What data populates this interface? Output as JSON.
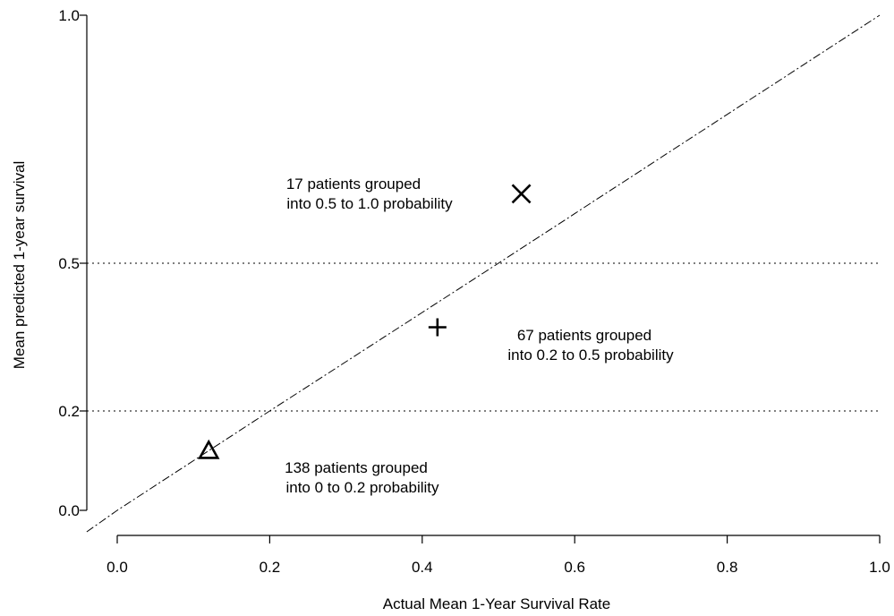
{
  "chart_data": {
    "type": "scatter",
    "title": "",
    "xlabel": "Actual Mean 1-Year Survival Rate",
    "ylabel": "Mean predicted 1-year survival",
    "xlim": [
      -0.04,
      1.0
    ],
    "ylim": [
      -0.04,
      1.0
    ],
    "x_ticks": [
      0.0,
      0.2,
      0.4,
      0.6,
      0.8,
      1.0
    ],
    "x_tick_labels": [
      "0.0",
      "0.2",
      "0.4",
      "0.6",
      "0.8",
      "1.0"
    ],
    "y_ticks": [
      0.0,
      0.2,
      0.5,
      1.0
    ],
    "y_tick_labels": [
      "0.0",
      "0.2",
      "0.5",
      "1.0"
    ],
    "y_scale": "nonlinear (ticks 0.0, 0.2, 0.5, 1.0 at uneven spacing)",
    "reference_lines": {
      "horizontal_dotted_at_y": [
        0.2,
        0.5
      ],
      "identity_diagonal": "y = x, dash-dot"
    },
    "points": [
      {
        "group": "0.0-0.2",
        "marker": "triangle",
        "x": 0.12,
        "y": 0.12
      },
      {
        "group": "0.2-0.5",
        "marker": "plus",
        "x": 0.42,
        "y": 0.37
      },
      {
        "group": "0.5-1.0",
        "marker": "x",
        "x": 0.53,
        "y": 0.64
      }
    ],
    "annotations": [
      {
        "lines": [
          "17 patients grouped",
          "into 0.5 to 1.0 probability"
        ],
        "group": "0.5-1.0"
      },
      {
        "lines": [
          "67 patients grouped",
          "into 0.2 to 0.5 probability"
        ],
        "group": "0.2-0.5"
      },
      {
        "lines": [
          "138 patients grouped",
          "into 0 to 0.2 probability"
        ],
        "group": "0.0-0.2"
      }
    ],
    "grid": false,
    "legend": "none"
  }
}
